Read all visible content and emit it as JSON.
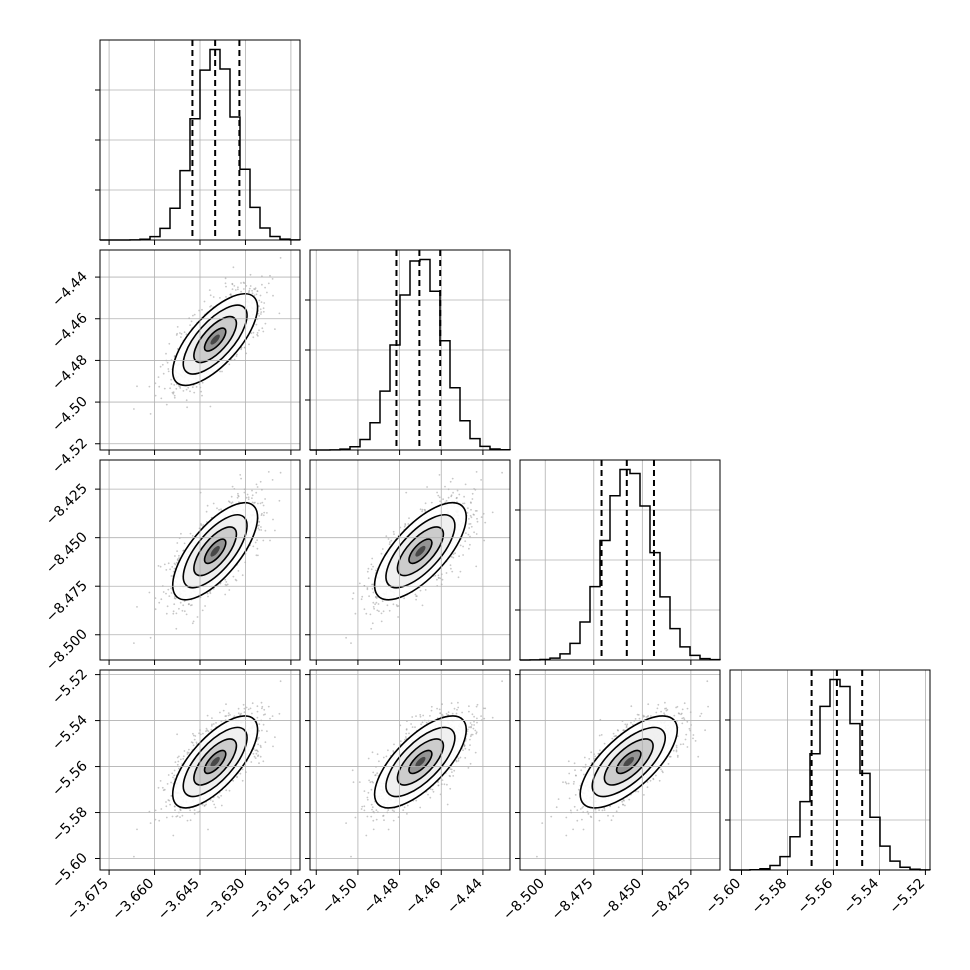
{
  "chart_data": {
    "type": "corner",
    "title": "",
    "parameters": [
      {
        "name": "",
        "range": [
          -3.678,
          -3.612
        ],
        "ticks": [
          -3.675,
          -3.66,
          -3.645,
          -3.63,
          -3.615
        ],
        "tick_labels": [
          "−3.675",
          "−3.660",
          "−3.645",
          "−3.630",
          "−3.615"
        ],
        "hist_ticks": 4,
        "quantiles": [
          -3.6475,
          -3.64,
          -3.632
        ],
        "center": -3.64,
        "sigma": 0.007
      },
      {
        "name": "",
        "range": [
          -4.523,
          -4.427
        ],
        "ticks": [
          -4.52,
          -4.5,
          -4.48,
          -4.46,
          -4.44
        ],
        "tick_labels": [
          "−4.52",
          "−4.50",
          "−4.48",
          "−4.46",
          "−4.44"
        ],
        "hist_ticks": 4,
        "quantiles": [
          -4.4815,
          -4.4705,
          -4.4605
        ],
        "center": -4.47,
        "sigma": 0.011
      },
      {
        "name": "",
        "range": [
          -8.513,
          -8.41
        ],
        "ticks": [
          -8.5,
          -8.475,
          -8.45,
          -8.425
        ],
        "tick_labels": [
          "−8.500",
          "−8.475",
          "−8.450",
          "−8.425"
        ],
        "hist_ticks": 4,
        "quantiles": [
          -8.471,
          -8.458,
          -8.444
        ],
        "center": -8.457,
        "sigma": 0.0125
      },
      {
        "name": "",
        "range": [
          -5.605,
          -5.518
        ],
        "ticks": [
          -5.6,
          -5.58,
          -5.56,
          -5.54,
          -5.52
        ],
        "tick_labels": [
          "−5.60",
          "−5.58",
          "−5.56",
          "−5.54",
          "−5.52"
        ],
        "hist_ticks": 4,
        "quantiles": [
          -5.5695,
          -5.5585,
          -5.5475
        ],
        "center": -5.558,
        "sigma": 0.01
      }
    ],
    "correlation": 0.7,
    "histogram_bins": 20,
    "contour_levels_sigma": [
      0.5,
      1.0,
      1.5,
      2.0
    ],
    "grid": true,
    "colors": {
      "line": "#000000",
      "point": "#999999",
      "grid": "#b0b0b0"
    }
  }
}
